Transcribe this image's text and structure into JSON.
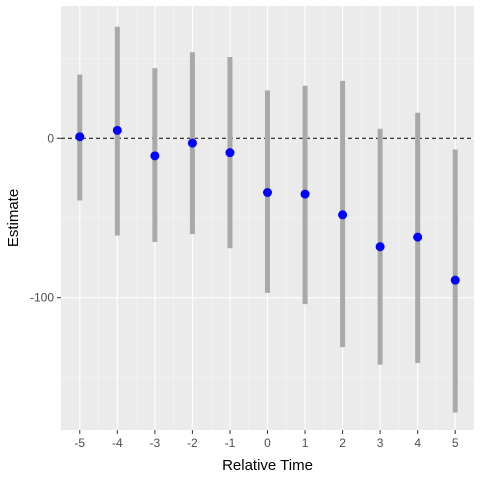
{
  "chart_data": {
    "type": "scatter",
    "title": "",
    "xlabel": "Relative Time",
    "ylabel": "Estimate",
    "x_ticks": [
      -5,
      -4,
      -3,
      -2,
      -1,
      0,
      1,
      2,
      3,
      4,
      5
    ],
    "y_ticks": [
      0,
      -100
    ],
    "xlim": [
      -5.5,
      5.5
    ],
    "ylim": [
      -183,
      83
    ],
    "reference_line": {
      "y": 0,
      "style": "dashed"
    },
    "grid": true,
    "legend": "none",
    "points": [
      {
        "x": -5,
        "estimate": 1,
        "lower": -39,
        "upper": 40
      },
      {
        "x": -4,
        "estimate": 5,
        "lower": -61,
        "upper": 70
      },
      {
        "x": -3,
        "estimate": -11,
        "lower": -65,
        "upper": 44
      },
      {
        "x": -2,
        "estimate": -3,
        "lower": -60,
        "upper": 54
      },
      {
        "x": -1,
        "estimate": -9,
        "lower": -69,
        "upper": 51
      },
      {
        "x": 0,
        "estimate": -34,
        "lower": -97,
        "upper": 30
      },
      {
        "x": 1,
        "estimate": -35,
        "lower": -104,
        "upper": 33
      },
      {
        "x": 2,
        "estimate": -48,
        "lower": -131,
        "upper": 36
      },
      {
        "x": 3,
        "estimate": -68,
        "lower": -142,
        "upper": 6
      },
      {
        "x": 4,
        "estimate": -62,
        "lower": -141,
        "upper": 16
      },
      {
        "x": 5,
        "estimate": -89,
        "lower": -172,
        "upper": -7
      }
    ],
    "colors": {
      "panel_background": "#ebebeb",
      "grid_major": "#ffffff",
      "point": "#0000ff",
      "error_bar": "#a9a9a9",
      "reference_line": "#000000"
    }
  }
}
